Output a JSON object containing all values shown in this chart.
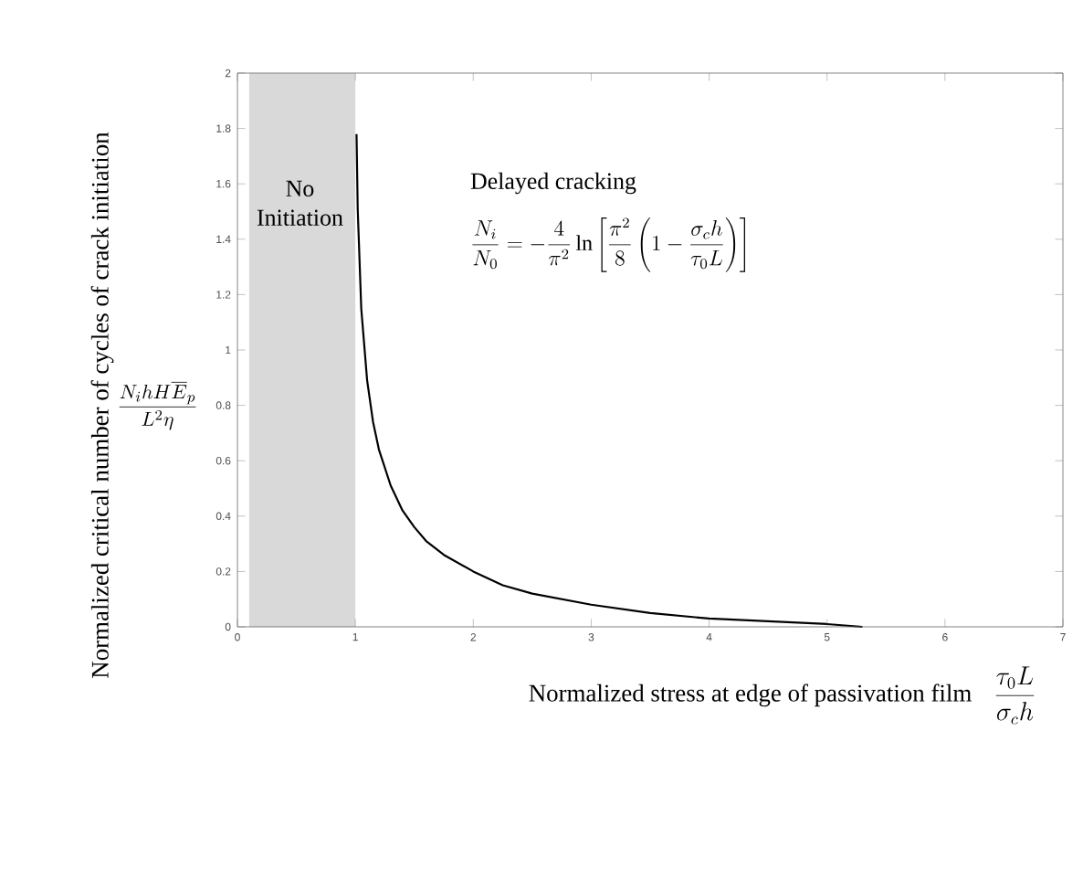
{
  "chart_data": {
    "type": "line",
    "xlabel": "Normalized stress at edge of passivation film",
    "ylabel": "Normalized critical number of cycles of crack initiation",
    "x": [
      1.01,
      1.02,
      1.05,
      1.1,
      1.15,
      1.2,
      1.3,
      1.4,
      1.5,
      1.6,
      1.75,
      2,
      2.25,
      2.5,
      3,
      3.5,
      4,
      4.5,
      5,
      5.3
    ],
    "series": [
      {
        "color": "#000000",
        "values": [
          1.78,
          1.51,
          1.15,
          0.89,
          0.74,
          0.64,
          0.51,
          0.42,
          0.36,
          0.31,
          0.26,
          0.2,
          0.15,
          0.12,
          0.08,
          0.05,
          0.03,
          0.02,
          0.01,
          0.0
        ]
      }
    ],
    "xlim": [
      0,
      7
    ],
    "xticks": [
      0,
      1,
      2,
      3,
      4,
      5,
      6,
      7
    ],
    "ylim": [
      0,
      2
    ],
    "yticks": [
      0,
      0.2,
      0.4,
      0.6,
      0.8,
      1,
      1.2,
      1.4,
      1.6,
      1.8,
      2
    ],
    "bands": [
      {
        "axis": "x",
        "from": 0.1,
        "to": 1,
        "label": "No Initiation",
        "color": "#d9d9d9"
      }
    ],
    "annotations": [
      "Delayed cracking",
      "\\frac{N_i}{N_0}=-\\frac{4}{\\pi^2}\\ln\\left[\\frac{\\pi^2}{8}\\left(1-\\frac{\\sigma_c h}{\\tau_0 L}\\right)\\right]",
      "\\frac{N_i h H\\overline{E}_p}{L^2\\eta}",
      "\\frac{\\tau_0 L}{\\sigma_c h}"
    ],
    "grid": false,
    "marker": "none",
    "line_style": "solid"
  }
}
